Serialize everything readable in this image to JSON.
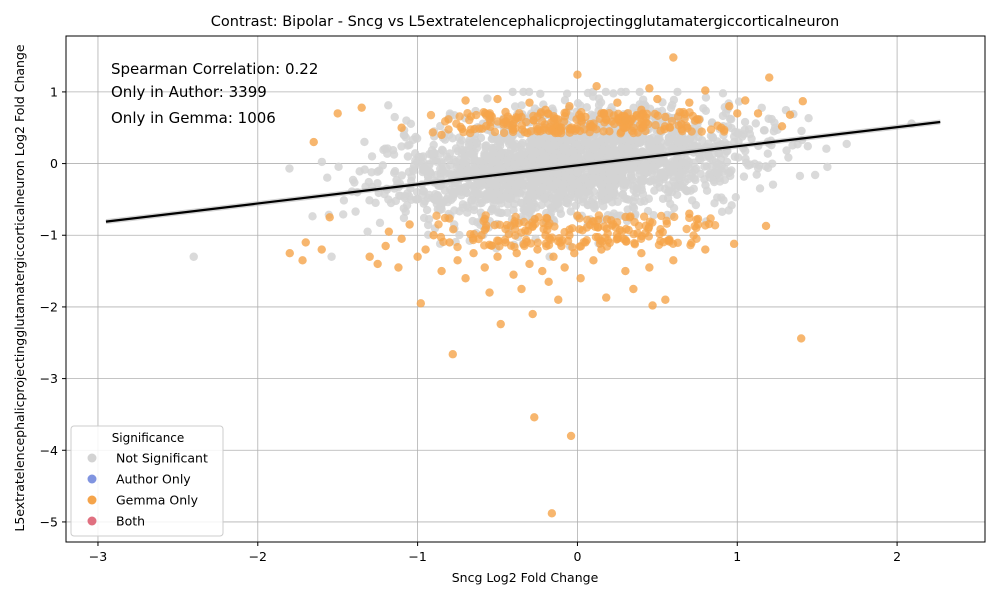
{
  "chart_data": {
    "type": "scatter",
    "title": "Contrast: Bipolar - Sncg vs L5extratelencephalicprojectingglutamatergiccorticalneuron",
    "xlabel": "Sncg Log2 Fold Change",
    "ylabel": "L5extratelencephalicprojectingglutamatergiccorticalneuron Log2 Fold Change",
    "xlim": [
      -3.2,
      2.55
    ],
    "ylim": [
      -5.28,
      1.78
    ],
    "xticks": [
      -3,
      -2,
      -1,
      0,
      1,
      2
    ],
    "yticks": [
      -5,
      -4,
      -3,
      -2,
      -1,
      0,
      1
    ],
    "grid": true,
    "annotations": [
      "Spearman Correlation: 0.22",
      "Only in Author: 3399",
      "Only in Gemma: 1006"
    ],
    "legend": {
      "title": "Significance",
      "placement": "lower-left",
      "entries": [
        {
          "label": "Not Significant",
          "color": "#d3d3d3"
        },
        {
          "label": "Author Only",
          "color": "#8094e0"
        },
        {
          "label": "Gemma Only",
          "color": "#f5a44a"
        },
        {
          "label": "Both",
          "color": "#e07080"
        }
      ]
    },
    "regression": {
      "x": [
        -2.95,
        2.27
      ],
      "y": [
        -0.81,
        0.58
      ],
      "color": "#000000"
    },
    "series": [
      {
        "name": "Gemma Only",
        "color": "#f5a44a",
        "points": [
          [
            -1.8,
            -1.25
          ],
          [
            -1.7,
            -1.1
          ],
          [
            -1.72,
            -1.35
          ],
          [
            -1.6,
            -1.2
          ],
          [
            -1.55,
            -0.75
          ],
          [
            -1.5,
            0.7
          ],
          [
            -1.35,
            0.78
          ],
          [
            -1.3,
            -1.3
          ],
          [
            -1.25,
            -1.4
          ],
          [
            -1.2,
            -1.15
          ],
          [
            -1.18,
            -0.95
          ],
          [
            -1.12,
            -1.45
          ],
          [
            -1.1,
            -1.05
          ],
          [
            -1.05,
            -0.85
          ],
          [
            -1.0,
            -1.3
          ],
          [
            -0.98,
            -1.95
          ],
          [
            -0.95,
            -1.2
          ],
          [
            -0.9,
            -1.0
          ],
          [
            -0.85,
            -1.5
          ],
          [
            -0.8,
            -1.1
          ],
          [
            -0.78,
            -2.66
          ],
          [
            -0.75,
            -1.35
          ],
          [
            -0.7,
            -1.6
          ],
          [
            -0.65,
            -1.25
          ],
          [
            -0.6,
            -1.0
          ],
          [
            -0.58,
            -1.45
          ],
          [
            -0.55,
            -1.8
          ],
          [
            -0.5,
            -1.3
          ],
          [
            -0.48,
            -2.24
          ],
          [
            -0.45,
            -1.1
          ],
          [
            -0.4,
            -1.55
          ],
          [
            -0.38,
            -1.25
          ],
          [
            -0.35,
            -1.75
          ],
          [
            -0.3,
            -1.4
          ],
          [
            -0.28,
            -2.1
          ],
          [
            -0.25,
            -1.2
          ],
          [
            -0.22,
            -1.5
          ],
          [
            -0.2,
            -1.0
          ],
          [
            -0.18,
            -1.65
          ],
          [
            -0.15,
            -1.3
          ],
          [
            -0.12,
            -1.9
          ],
          [
            -0.1,
            -1.15
          ],
          [
            -0.08,
            -1.45
          ],
          [
            -0.05,
            -1.0
          ],
          [
            -0.02,
            -1.25
          ],
          [
            0.02,
            -1.6
          ],
          [
            0.05,
            -1.1
          ],
          [
            0.1,
            -1.35
          ],
          [
            0.15,
            -1.2
          ],
          [
            0.18,
            -1.87
          ],
          [
            0.25,
            -1.05
          ],
          [
            0.3,
            -1.5
          ],
          [
            0.35,
            -1.75
          ],
          [
            0.4,
            -1.25
          ],
          [
            0.45,
            -1.45
          ],
          [
            0.47,
            -1.98
          ],
          [
            0.55,
            -1.9
          ],
          [
            0.6,
            -1.35
          ],
          [
            0.7,
            -0.7
          ],
          [
            0.8,
            -1.2
          ],
          [
            0.98,
            -1.12
          ],
          [
            1.18,
            -0.87
          ],
          [
            1.4,
            -2.44
          ],
          [
            -0.27,
            -3.54
          ],
          [
            -0.04,
            -3.8
          ],
          [
            -0.16,
            -4.88
          ],
          [
            -1.65,
            0.3
          ],
          [
            -1.1,
            0.5
          ],
          [
            -0.85,
            0.4
          ],
          [
            -0.7,
            0.88
          ],
          [
            -0.55,
            0.62
          ],
          [
            -0.5,
            0.9
          ],
          [
            -0.45,
            0.72
          ],
          [
            -0.4,
            0.55
          ],
          [
            -0.35,
            0.65
          ],
          [
            -0.3,
            0.85
          ],
          [
            -0.25,
            0.45
          ],
          [
            -0.2,
            0.75
          ],
          [
            -0.15,
            0.6
          ],
          [
            -0.1,
            0.5
          ],
          [
            -0.05,
            0.8
          ],
          [
            0.0,
            1.24
          ],
          [
            0.05,
            0.65
          ],
          [
            0.08,
            0.55
          ],
          [
            0.12,
            1.08
          ],
          [
            0.15,
            0.7
          ],
          [
            0.2,
            0.45
          ],
          [
            0.25,
            0.85
          ],
          [
            0.3,
            0.6
          ],
          [
            0.35,
            0.5
          ],
          [
            0.4,
            0.75
          ],
          [
            0.45,
            1.05
          ],
          [
            0.5,
            0.9
          ],
          [
            0.55,
            0.65
          ],
          [
            0.6,
            1.48
          ],
          [
            0.65,
            0.55
          ],
          [
            0.7,
            0.85
          ],
          [
            0.75,
            0.62
          ],
          [
            0.8,
            1.02
          ],
          [
            0.9,
            0.5
          ],
          [
            0.95,
            0.8
          ],
          [
            1.0,
            0.7
          ],
          [
            1.05,
            0.88
          ],
          [
            1.13,
            0.7
          ],
          [
            1.2,
            1.2
          ],
          [
            1.28,
            0.52
          ],
          [
            1.33,
            0.68
          ],
          [
            1.41,
            0.87
          ]
        ]
      },
      {
        "name": "Author Only",
        "color": "#8094e0",
        "points": []
      },
      {
        "name": "Both",
        "color": "#e07080",
        "points": []
      }
    ]
  }
}
